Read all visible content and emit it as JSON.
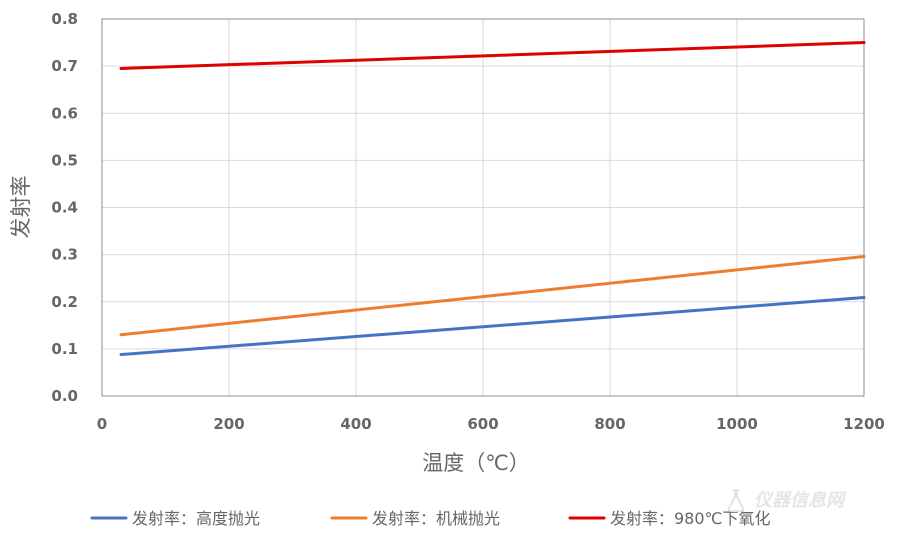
{
  "chart_data": {
    "type": "line",
    "title": "",
    "xlabel": "温度（℃）",
    "ylabel": "发射率",
    "xlim": [
      0,
      1200
    ],
    "ylim": [
      0,
      0.8
    ],
    "xticks": [
      0,
      200,
      400,
      600,
      800,
      1000,
      1200
    ],
    "yticks": [
      0.0,
      0.1,
      0.2,
      0.3,
      0.4,
      0.5,
      0.6,
      0.7,
      0.8
    ],
    "xtick_labels": [
      "0",
      "200",
      "400",
      "600",
      "800",
      "1000",
      "1200"
    ],
    "ytick_labels": [
      "0.0",
      "0.1",
      "0.2",
      "0.3",
      "0.4",
      "0.5",
      "0.6",
      "0.7",
      "0.8"
    ],
    "grid": true,
    "legend_position": "bottom",
    "series": [
      {
        "name": "发射率：高度抛光",
        "color": "#4472C4",
        "x": [
          30,
          1200
        ],
        "y": [
          0.088,
          0.209
        ]
      },
      {
        "name": "发射率：机械抛光",
        "color": "#ED7D31",
        "x": [
          30,
          1200
        ],
        "y": [
          0.13,
          0.296
        ]
      },
      {
        "name": "发射率：980℃下氧化",
        "color": "#E00000",
        "x": [
          30,
          1200
        ],
        "y": [
          0.695,
          0.75
        ]
      }
    ]
  },
  "watermark": {
    "text": "仪器信息网",
    "icon": "flask-logo-icon"
  }
}
